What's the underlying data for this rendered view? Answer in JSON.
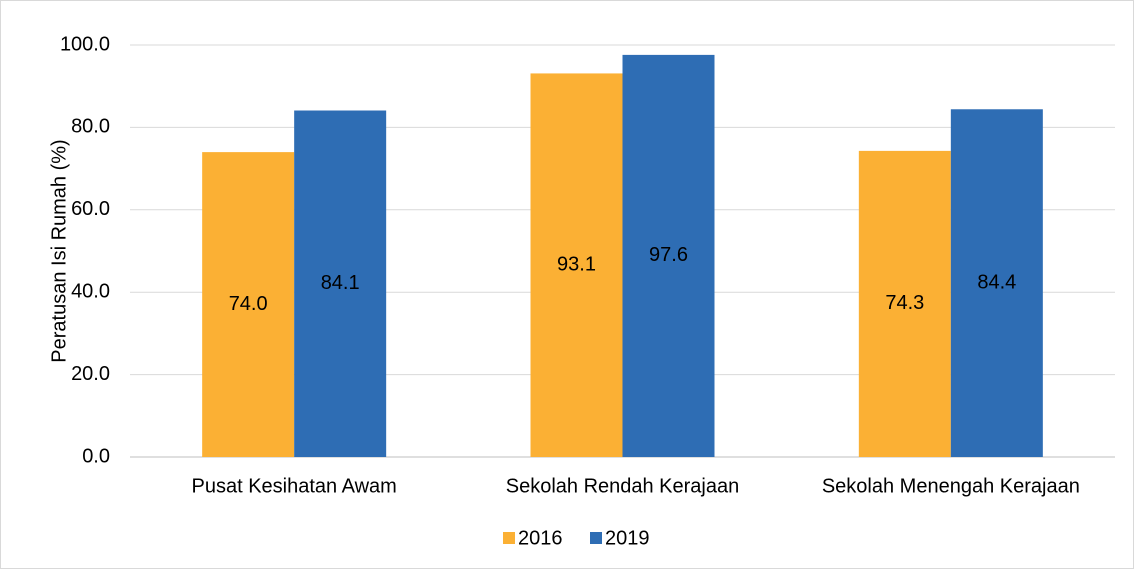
{
  "chart_data": {
    "type": "bar",
    "y_label": "Peratusan Isi Rumah (%)",
    "categories": [
      "Pusat Kesihatan Awam",
      "Sekolah Rendah Kerajaan",
      "Sekolah Menengah Kerajaan"
    ],
    "series": [
      {
        "name": "2016",
        "color": "#FBB034",
        "values": [
          74.0,
          93.1,
          74.3
        ],
        "value_labels": [
          "74.0",
          "93.1",
          "74.3"
        ]
      },
      {
        "name": "2019",
        "color": "#2E6DB4",
        "values": [
          84.1,
          97.6,
          84.4
        ],
        "value_labels": [
          "84.1",
          "97.6",
          "84.4"
        ]
      }
    ],
    "ylim": [
      0,
      100
    ],
    "yticks": [
      {
        "value": 0,
        "label": "0.0"
      },
      {
        "value": 20,
        "label": "20.0"
      },
      {
        "value": 40,
        "label": "40.0"
      },
      {
        "value": 60,
        "label": "60.0"
      },
      {
        "value": 80,
        "label": "80.0"
      },
      {
        "value": 100,
        "label": "100.0"
      }
    ],
    "grid": true,
    "legend": "bottom"
  }
}
